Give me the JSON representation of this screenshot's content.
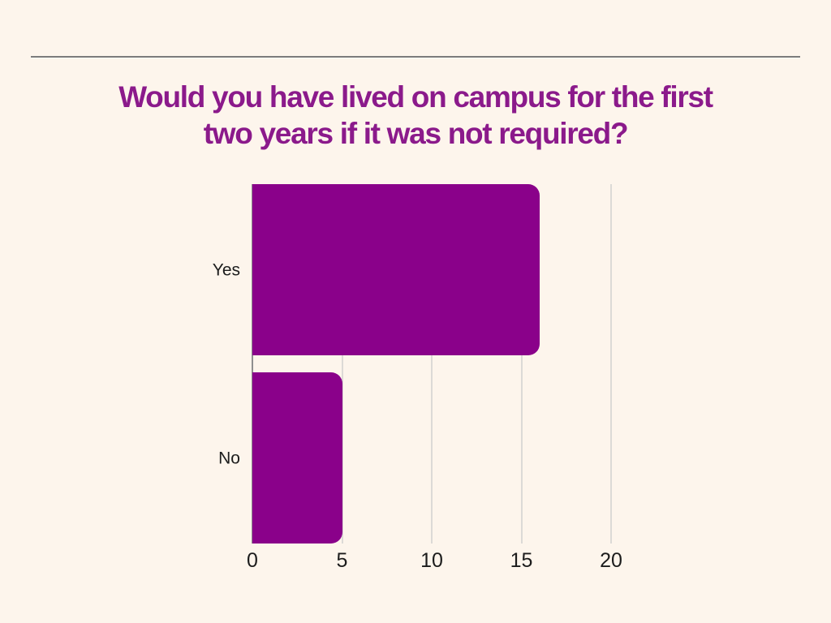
{
  "chart_data": {
    "type": "bar",
    "orientation": "horizontal",
    "title": "Would you have lived on campus for the first two years if it was not required?",
    "title_lines": [
      "Would you have lived on campus for the first",
      "two years if it was not required?"
    ],
    "categories": [
      "Yes",
      "No"
    ],
    "values": [
      16,
      5
    ],
    "xlabel": "",
    "ylabel": "",
    "xlim": [
      0,
      20
    ],
    "x_ticks": [
      0,
      5,
      10,
      15,
      20
    ],
    "grid": true,
    "legend": "none",
    "bar_color": "#8a018a",
    "title_color": "#8b1a8b",
    "background_color": "#fdf5ec",
    "gridline_color": "#dcdad6",
    "axis_line_color": "#8f8f8f",
    "tick_label_color": "#1c1c1c",
    "category_label_color": "#1c1c1c",
    "divider_color": "#7c7c7c"
  }
}
